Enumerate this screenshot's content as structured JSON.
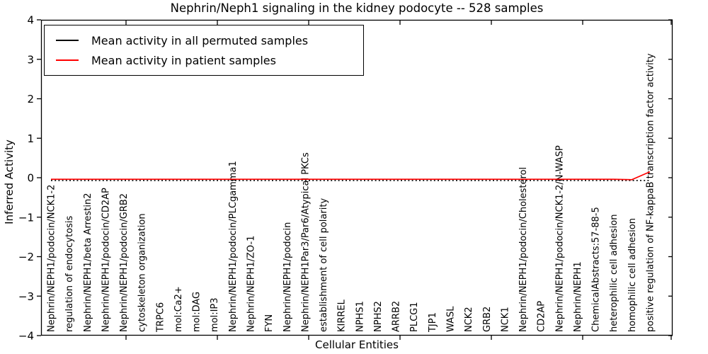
{
  "chart_data": {
    "type": "line",
    "title": "Nephrin/Neph1 signaling in the kidney podocyte -- 528 samples",
    "xlabel": "Cellular Entities",
    "ylabel": "Inferred Activity",
    "ylim": [
      -4,
      4
    ],
    "yticks": [
      -4,
      -3,
      -2,
      -1,
      0,
      1,
      2,
      3,
      4
    ],
    "grid": false,
    "legend_position": "upper left",
    "x_tick_label_rotation": "vertical",
    "categories": [
      "Nephrin/NEPH1/podocin/NCK1-2",
      "regulation of endocytosis",
      "Nephrin/NEPH1/beta Arrestin2",
      "Nephrin/NEPH1/podocin/CD2AP",
      "Nephrin/NEPH1/podocin/GRB2",
      "cytoskeleton organization",
      "TRPC6",
      "mol:Ca2+",
      "mol:DAG",
      "mol:IP3",
      "Nephrin/NEPH1/podocin/PLCgamma1",
      "Nephrin/NEPH1/ZO-1",
      "FYN",
      "Nephrin/NEPH1/podocin",
      "Nephrin/NEPH1Par3/Par6/Atypical PKCs",
      "establishment of cell polarity",
      "KIRREL",
      "NPHS1",
      "NPHS2",
      "ARRB2",
      "PLCG1",
      "TJP1",
      "WASL",
      "NCK2",
      "GRB2",
      "NCK1",
      "Nephrin/NEPH1/podocin/Cholesterol",
      "CD2AP",
      "Nephrin/NEPH1/podocin/NCK1-2/N-WASP",
      "Nephrin/NEPH1",
      "ChemicalAbstracts:57-88-5",
      "heterophilic cell adhesion",
      "homophilic cell adhesion",
      "positive regulation of NF-kappaB transcription factor activity"
    ],
    "series": [
      {
        "name": "Mean activity in all permuted samples",
        "color": "#000000",
        "style": "dotted",
        "values": [
          -0.07,
          -0.07,
          -0.07,
          -0.07,
          -0.07,
          -0.07,
          -0.07,
          -0.07,
          -0.07,
          -0.07,
          -0.07,
          -0.07,
          -0.07,
          -0.07,
          -0.07,
          -0.07,
          -0.07,
          -0.07,
          -0.07,
          -0.07,
          -0.07,
          -0.07,
          -0.07,
          -0.07,
          -0.07,
          -0.07,
          -0.07,
          -0.07,
          -0.07,
          -0.07,
          -0.07,
          -0.07,
          -0.07,
          -0.07
        ]
      },
      {
        "name": "Mean activity in patient samples",
        "color": "#ff0000",
        "style": "solid",
        "values": [
          -0.04,
          -0.04,
          -0.04,
          -0.04,
          -0.04,
          -0.04,
          -0.04,
          -0.04,
          -0.04,
          -0.04,
          -0.04,
          -0.04,
          -0.04,
          -0.04,
          -0.04,
          -0.04,
          -0.04,
          -0.04,
          -0.04,
          -0.04,
          -0.04,
          -0.04,
          -0.04,
          -0.04,
          -0.04,
          -0.04,
          -0.04,
          -0.04,
          -0.04,
          -0.04,
          -0.04,
          -0.04,
          -0.05,
          0.15
        ]
      }
    ]
  }
}
